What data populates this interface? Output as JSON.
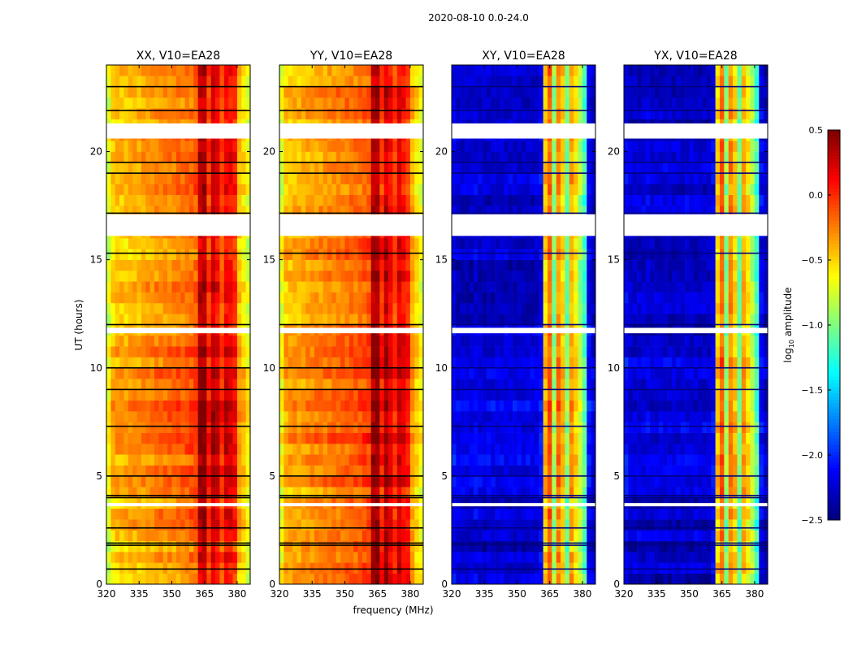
{
  "chart_data": {
    "type": "heatmap",
    "title": "2020-08-10 0.0-24.0",
    "xlabel": "frequency (MHz)",
    "ylabel": "UT (hours)",
    "xlim": [
      320,
      386
    ],
    "ylim": [
      0,
      24
    ],
    "xticks": [
      "320",
      "335",
      "350",
      "365",
      "380"
    ],
    "xtick_values": [
      320,
      335,
      350,
      365,
      380
    ],
    "yticks": [
      "0",
      "5",
      "10",
      "15",
      "20"
    ],
    "ytick_values": [
      0,
      5,
      10,
      15,
      20
    ],
    "freq_bin_start": 320,
    "freq_bin_width": 2,
    "time_bin_hours": 0.5,
    "flagged_hours": [
      [
        20.6,
        21.3
      ],
      [
        16.1,
        17.1
      ],
      [
        11.6,
        11.85
      ],
      [
        3.6,
        3.75
      ]
    ],
    "black_lines_hours": [
      23.0,
      21.9,
      19.5,
      19.0,
      17.15,
      15.3,
      12.0,
      10.0,
      9.0,
      7.3,
      5.0,
      4.1,
      4.0,
      2.6,
      1.9,
      1.8,
      0.7
    ],
    "colorbar": {
      "label_main": "log",
      "label_sub": "10",
      "label_rest": " amplitude",
      "range": [
        -2.5,
        0.5
      ],
      "ticks": [
        "0.5",
        "0.0",
        "−0.5",
        "−1.0",
        "−1.5",
        "−2.0",
        "−2.5"
      ],
      "tick_values": [
        0.5,
        0.0,
        -0.5,
        -1.0,
        -1.5,
        -2.0,
        -2.5
      ]
    },
    "panels": [
      {
        "title": "XX, V10=EA28",
        "profile": [
          -0.75,
          -0.5,
          -0.45,
          -0.45,
          -0.45,
          -0.42,
          -0.4,
          -0.4,
          -0.38,
          -0.35,
          -0.35,
          -0.32,
          -0.3,
          -0.3,
          -0.28,
          -0.28,
          -0.25,
          -0.25,
          -0.22,
          -0.2,
          -0.15,
          0.3,
          0.35,
          -0.05,
          0.25,
          0.15,
          -0.1,
          0.15,
          0.1,
          0.0,
          -0.45,
          -0.55,
          -0.7
        ]
      },
      {
        "title": "YY, V10=EA28",
        "profile": [
          -0.7,
          -0.45,
          -0.42,
          -0.4,
          -0.4,
          -0.38,
          -0.36,
          -0.35,
          -0.33,
          -0.32,
          -0.3,
          -0.28,
          -0.27,
          -0.25,
          -0.25,
          -0.22,
          -0.2,
          -0.2,
          -0.18,
          -0.15,
          -0.1,
          0.35,
          0.4,
          0.0,
          0.3,
          0.15,
          -0.05,
          0.2,
          0.1,
          0.0,
          -0.4,
          -0.55,
          -0.7
        ]
      },
      {
        "title": "XY, V10=EA28",
        "profile": [
          -2.2,
          -2.3,
          -2.3,
          -2.3,
          -2.3,
          -2.25,
          -2.3,
          -2.3,
          -2.3,
          -2.3,
          -2.3,
          -2.3,
          -2.3,
          -2.3,
          -2.3,
          -2.3,
          -2.3,
          -2.3,
          -2.3,
          -2.3,
          -2.2,
          -0.5,
          -0.2,
          -1.0,
          -0.3,
          -0.5,
          -1.1,
          -0.4,
          -0.6,
          -0.9,
          -1.2,
          -2.2,
          -2.3
        ]
      },
      {
        "title": "YX, V10=EA28",
        "profile": [
          -2.2,
          -2.3,
          -2.3,
          -2.3,
          -2.3,
          -2.25,
          -2.3,
          -2.3,
          -2.3,
          -2.3,
          -2.3,
          -2.3,
          -2.3,
          -2.3,
          -2.3,
          -2.3,
          -2.3,
          -2.3,
          -2.3,
          -2.3,
          -2.2,
          -0.5,
          -0.2,
          -1.0,
          -0.3,
          -0.5,
          -1.1,
          -0.4,
          -0.6,
          -0.9,
          -1.2,
          -2.2,
          -2.3
        ]
      }
    ]
  }
}
